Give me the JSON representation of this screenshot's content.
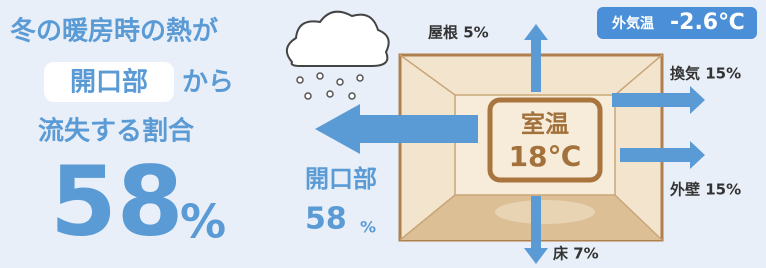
{
  "headline": {
    "line1": "冬の暖房時の熱が",
    "highlight": "開口部",
    "line2_rest": "から",
    "line3": "流失する割合",
    "percent": {
      "number": "58",
      "unit": "%"
    }
  },
  "diagram": {
    "outdoor_temp": {
      "label": "外気温",
      "value": "-2.6℃"
    },
    "room_temp": {
      "label": "室温",
      "value": "18℃"
    },
    "losses": {
      "roof": "屋根 5%",
      "ventilation": "換気 15%",
      "walls": "外壁 15%",
      "floor": "床 7%",
      "openings": {
        "label": "開口部",
        "number": "58",
        "unit": "%"
      }
    }
  }
}
